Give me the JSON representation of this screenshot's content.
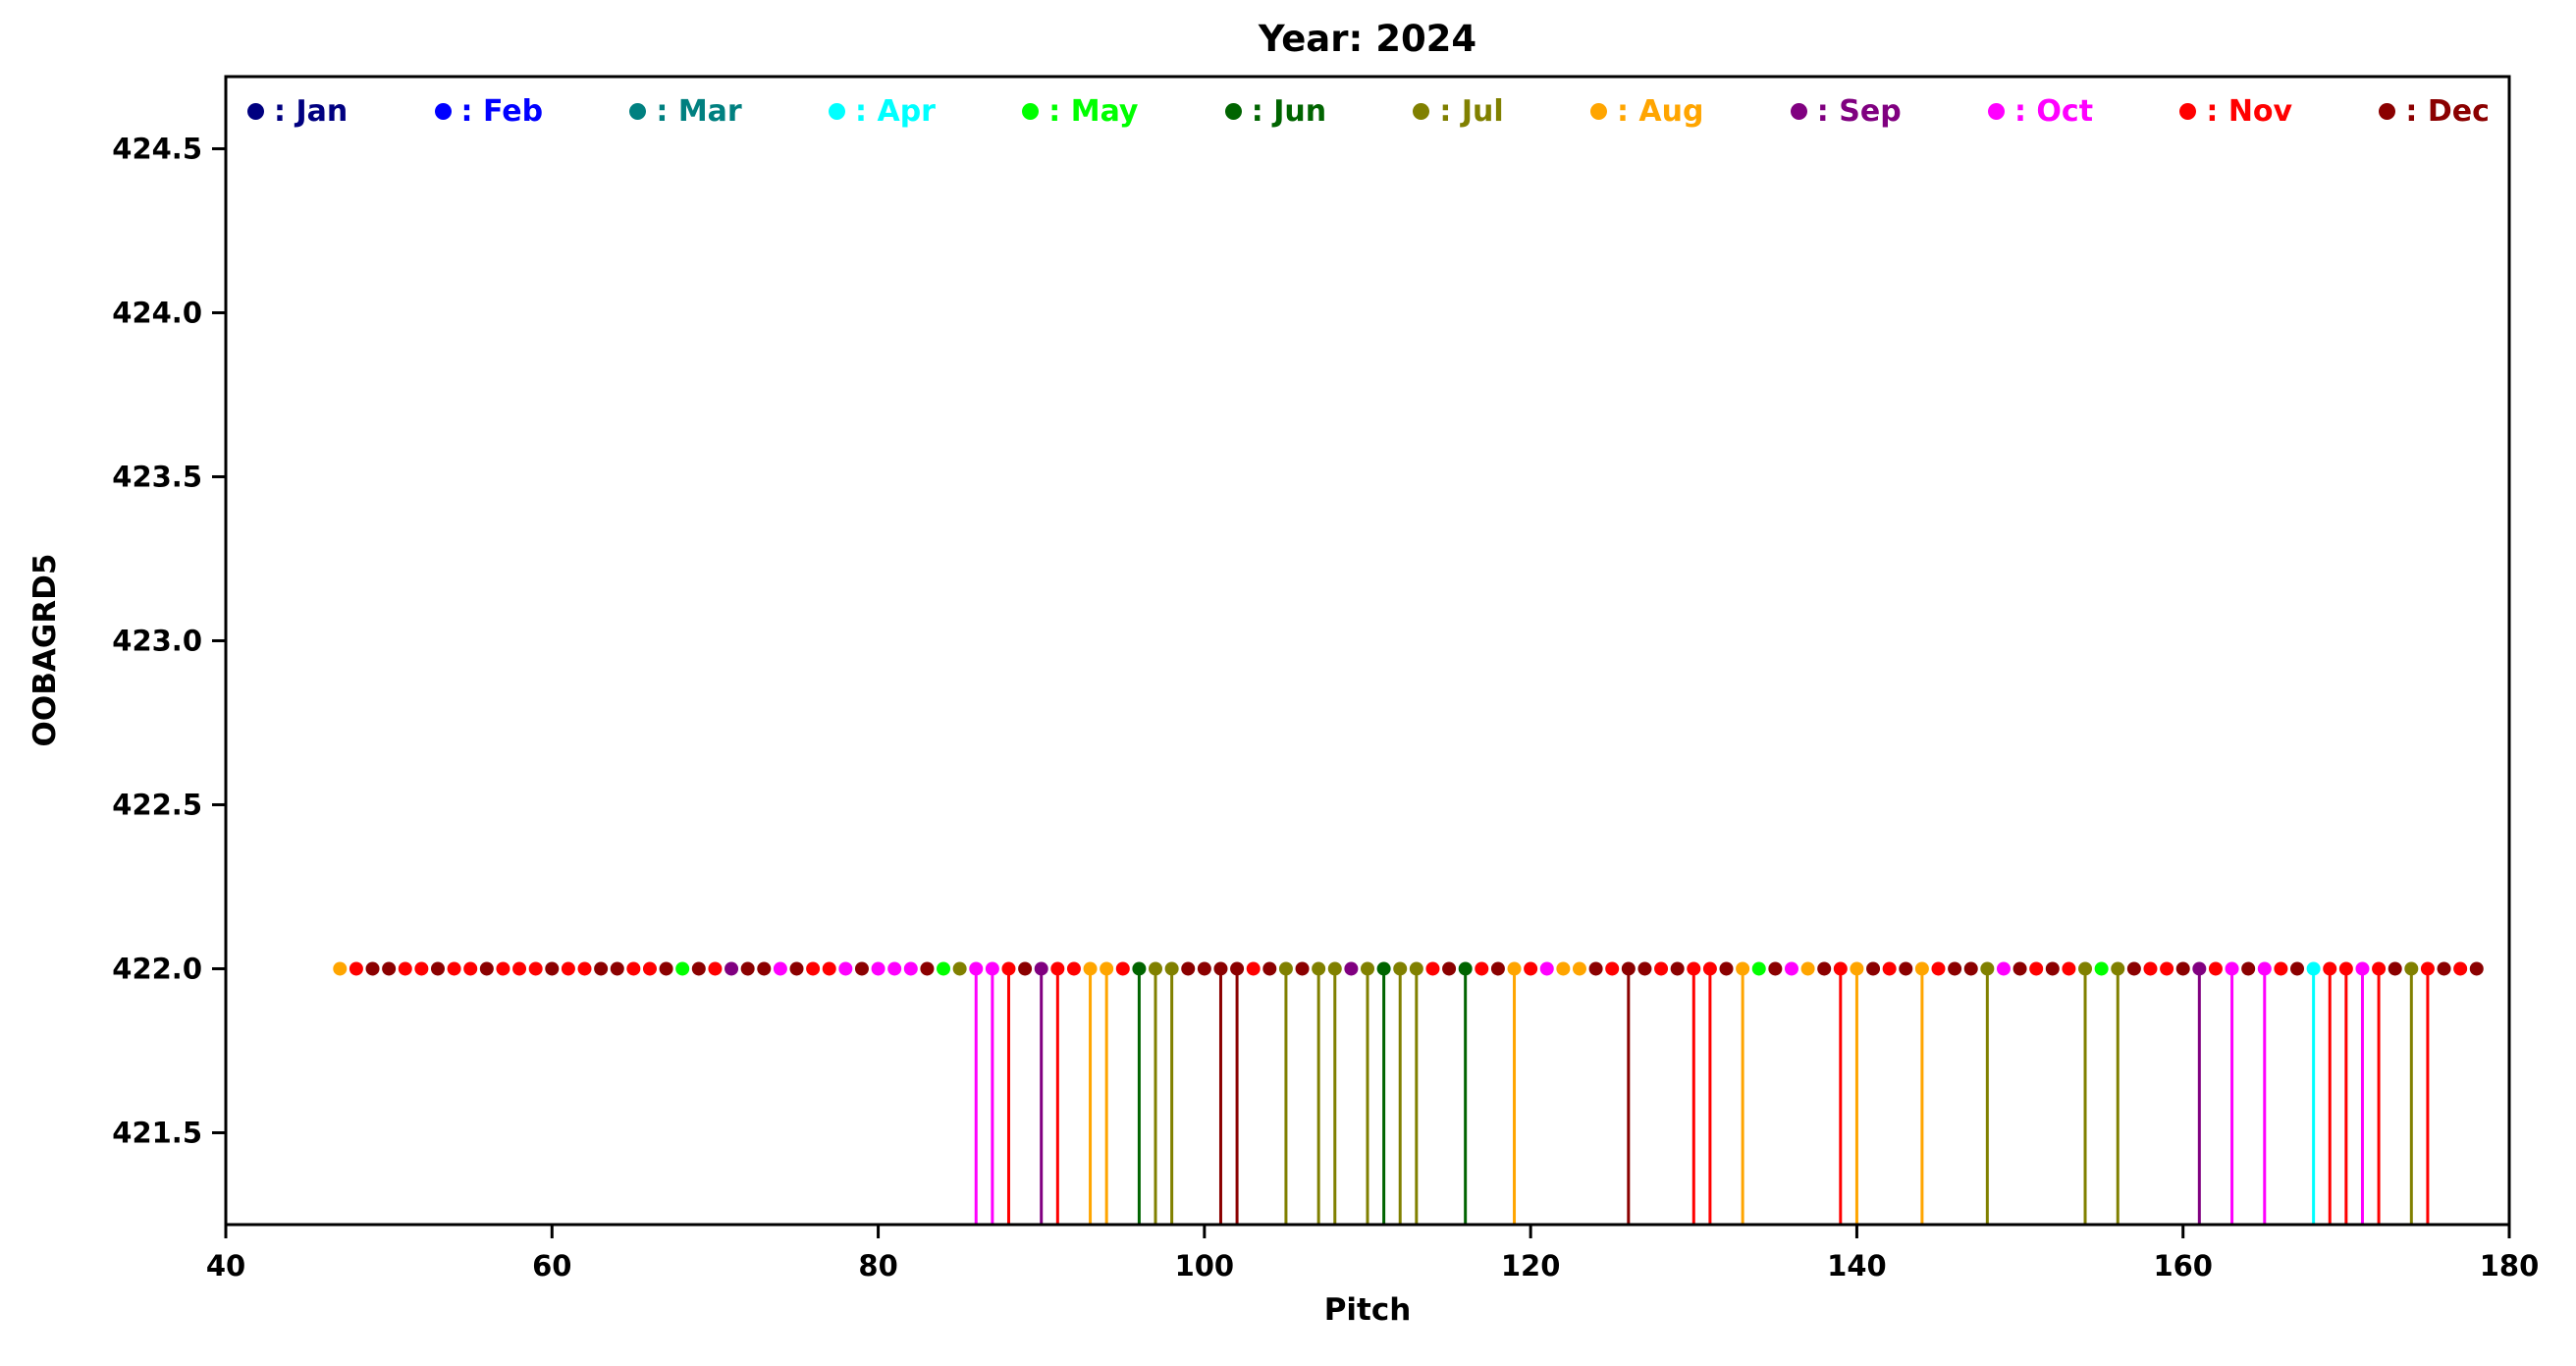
{
  "chart_data": {
    "type": "scatter",
    "subtype": "stem-scatter",
    "title": "Year: 2024",
    "xlabel": "Pitch",
    "ylabel": "OOBAGRD5",
    "xlim": [
      40,
      180
    ],
    "ylim": [
      421.22,
      424.72
    ],
    "xticks": [
      40,
      60,
      80,
      100,
      120,
      140,
      160,
      180
    ],
    "yticks": [
      "421.5",
      "422.0",
      "422.5",
      "423.0",
      "423.5",
      "424.0",
      "424.5"
    ],
    "grid": false,
    "legend_position": "top-inside",
    "point_y": 422.0,
    "colors": {
      "Jan": "#000080",
      "Feb": "#0000FF",
      "Mar": "#008080",
      "Apr": "#00FFFF",
      "May": "#00FF00",
      "Jun": "#006400",
      "Jul": "#808000",
      "Aug": "#FFA500",
      "Sep": "#800080",
      "Oct": "#FF00FF",
      "Nov": "#FF0000",
      "Dec": "#8B0000"
    },
    "legend": [
      {
        "month": "Jan",
        "label": ": Jan"
      },
      {
        "month": "Feb",
        "label": ": Feb"
      },
      {
        "month": "Mar",
        "label": ": Mar"
      },
      {
        "month": "Apr",
        "label": ": Apr"
      },
      {
        "month": "May",
        "label": ": May"
      },
      {
        "month": "Jun",
        "label": ": Jun"
      },
      {
        "month": "Jul",
        "label": ": Jul"
      },
      {
        "month": "Aug",
        "label": ": Aug"
      },
      {
        "month": "Sep",
        "label": ": Sep"
      },
      {
        "month": "Oct",
        "label": ": Oct"
      },
      {
        "month": "Nov",
        "label": ": Nov"
      },
      {
        "month": "Dec",
        "label": ": Dec"
      }
    ],
    "points_note": "each point = [pitch_x, month, has_stem]; all points at y=422.0; stems drop to plot bottom",
    "points": [
      [
        47,
        "Aug",
        0
      ],
      [
        48,
        "Nov",
        0
      ],
      [
        49,
        "Dec",
        0
      ],
      [
        50,
        "Dec",
        0
      ],
      [
        51,
        "Nov",
        0
      ],
      [
        52,
        "Nov",
        0
      ],
      [
        53,
        "Dec",
        0
      ],
      [
        54,
        "Nov",
        0
      ],
      [
        55,
        "Nov",
        0
      ],
      [
        56,
        "Dec",
        0
      ],
      [
        57,
        "Nov",
        0
      ],
      [
        58,
        "Nov",
        0
      ],
      [
        59,
        "Nov",
        0
      ],
      [
        60,
        "Dec",
        0
      ],
      [
        61,
        "Nov",
        0
      ],
      [
        62,
        "Nov",
        0
      ],
      [
        63,
        "Dec",
        0
      ],
      [
        64,
        "Dec",
        0
      ],
      [
        65,
        "Nov",
        0
      ],
      [
        66,
        "Nov",
        0
      ],
      [
        67,
        "Dec",
        0
      ],
      [
        68,
        "May",
        0
      ],
      [
        69,
        "Dec",
        0
      ],
      [
        70,
        "Nov",
        0
      ],
      [
        71,
        "Sep",
        0
      ],
      [
        72,
        "Dec",
        0
      ],
      [
        73,
        "Dec",
        0
      ],
      [
        74,
        "Oct",
        0
      ],
      [
        75,
        "Dec",
        0
      ],
      [
        76,
        "Nov",
        0
      ],
      [
        77,
        "Nov",
        0
      ],
      [
        78,
        "Oct",
        0
      ],
      [
        79,
        "Dec",
        0
      ],
      [
        80,
        "Oct",
        0
      ],
      [
        81,
        "Oct",
        0
      ],
      [
        82,
        "Oct",
        0
      ],
      [
        83,
        "Dec",
        0
      ],
      [
        84,
        "May",
        0
      ],
      [
        85,
        "Jul",
        0
      ],
      [
        86,
        "Oct",
        1
      ],
      [
        87,
        "Oct",
        1
      ],
      [
        88,
        "Nov",
        1
      ],
      [
        89,
        "Dec",
        0
      ],
      [
        90,
        "Sep",
        1
      ],
      [
        91,
        "Nov",
        1
      ],
      [
        92,
        "Nov",
        0
      ],
      [
        93,
        "Aug",
        1
      ],
      [
        94,
        "Aug",
        1
      ],
      [
        95,
        "Nov",
        0
      ],
      [
        96,
        "Jun",
        1
      ],
      [
        97,
        "Jul",
        1
      ],
      [
        98,
        "Jul",
        1
      ],
      [
        99,
        "Dec",
        0
      ],
      [
        100,
        "Dec",
        0
      ],
      [
        101,
        "Dec",
        1
      ],
      [
        102,
        "Dec",
        1
      ],
      [
        103,
        "Nov",
        0
      ],
      [
        104,
        "Dec",
        0
      ],
      [
        105,
        "Jul",
        1
      ],
      [
        106,
        "Dec",
        0
      ],
      [
        107,
        "Jul",
        1
      ],
      [
        108,
        "Jul",
        1
      ],
      [
        109,
        "Sep",
        0
      ],
      [
        110,
        "Jul",
        1
      ],
      [
        111,
        "Jun",
        1
      ],
      [
        112,
        "Jul",
        1
      ],
      [
        113,
        "Jul",
        1
      ],
      [
        114,
        "Nov",
        0
      ],
      [
        115,
        "Dec",
        0
      ],
      [
        116,
        "Jun",
        1
      ],
      [
        117,
        "Nov",
        0
      ],
      [
        118,
        "Dec",
        0
      ],
      [
        119,
        "Aug",
        1
      ],
      [
        120,
        "Nov",
        0
      ],
      [
        121,
        "Oct",
        0
      ],
      [
        122,
        "Aug",
        0
      ],
      [
        123,
        "Aug",
        0
      ],
      [
        124,
        "Dec",
        0
      ],
      [
        125,
        "Nov",
        0
      ],
      [
        126,
        "Dec",
        1
      ],
      [
        127,
        "Dec",
        0
      ],
      [
        128,
        "Nov",
        0
      ],
      [
        129,
        "Dec",
        0
      ],
      [
        130,
        "Nov",
        1
      ],
      [
        131,
        "Nov",
        1
      ],
      [
        132,
        "Dec",
        0
      ],
      [
        133,
        "Aug",
        1
      ],
      [
        134,
        "May",
        0
      ],
      [
        135,
        "Dec",
        0
      ],
      [
        136,
        "Oct",
        0
      ],
      [
        137,
        "Aug",
        0
      ],
      [
        138,
        "Dec",
        0
      ],
      [
        139,
        "Nov",
        1
      ],
      [
        140,
        "Aug",
        1
      ],
      [
        141,
        "Dec",
        0
      ],
      [
        142,
        "Nov",
        0
      ],
      [
        143,
        "Dec",
        0
      ],
      [
        144,
        "Aug",
        1
      ],
      [
        145,
        "Nov",
        0
      ],
      [
        146,
        "Dec",
        0
      ],
      [
        147,
        "Dec",
        0
      ],
      [
        148,
        "Jul",
        1
      ],
      [
        149,
        "Oct",
        0
      ],
      [
        150,
        "Dec",
        0
      ],
      [
        151,
        "Nov",
        0
      ],
      [
        152,
        "Dec",
        0
      ],
      [
        153,
        "Nov",
        0
      ],
      [
        154,
        "Jul",
        1
      ],
      [
        155,
        "May",
        0
      ],
      [
        156,
        "Jul",
        1
      ],
      [
        157,
        "Dec",
        0
      ],
      [
        158,
        "Nov",
        0
      ],
      [
        159,
        "Nov",
        0
      ],
      [
        160,
        "Dec",
        0
      ],
      [
        161,
        "Sep",
        1
      ],
      [
        162,
        "Nov",
        0
      ],
      [
        163,
        "Oct",
        1
      ],
      [
        164,
        "Dec",
        0
      ],
      [
        165,
        "Oct",
        1
      ],
      [
        166,
        "Nov",
        0
      ],
      [
        167,
        "Dec",
        0
      ],
      [
        168,
        "Apr",
        1
      ],
      [
        169,
        "Nov",
        1
      ],
      [
        170,
        "Nov",
        1
      ],
      [
        171,
        "Oct",
        1
      ],
      [
        172,
        "Nov",
        1
      ],
      [
        173,
        "Dec",
        0
      ],
      [
        174,
        "Jul",
        1
      ],
      [
        175,
        "Nov",
        1
      ],
      [
        176,
        "Dec",
        0
      ],
      [
        177,
        "Nov",
        0
      ],
      [
        178,
        "Dec",
        0
      ]
    ]
  }
}
